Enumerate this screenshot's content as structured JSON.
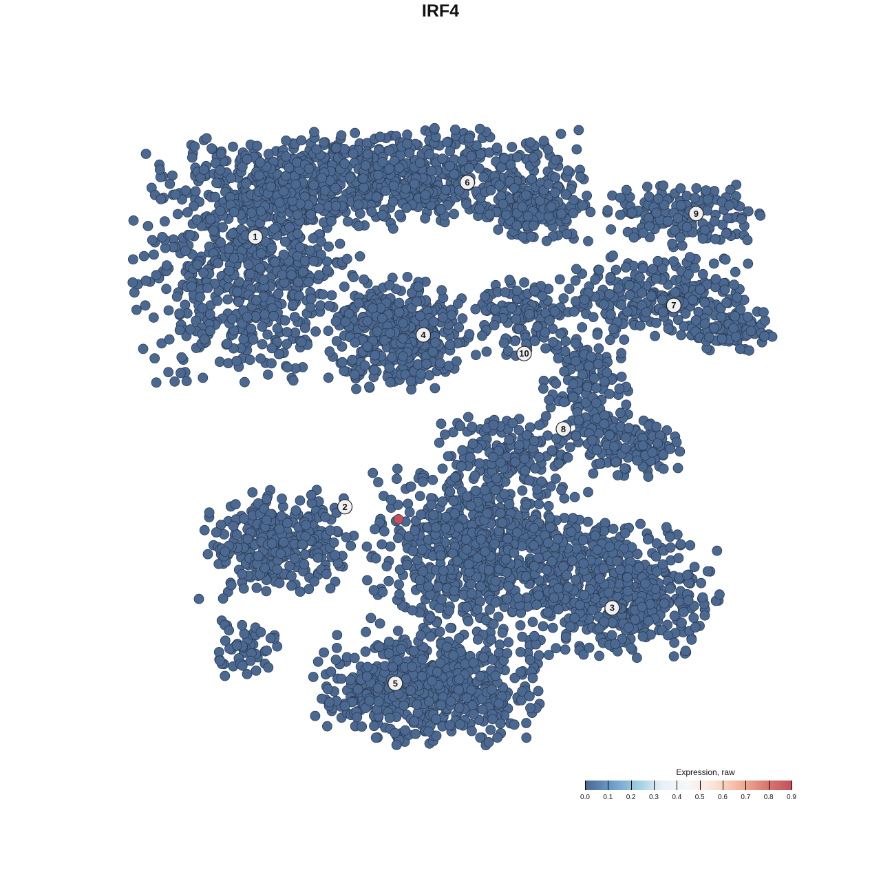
{
  "chart_data": {
    "type": "scatter",
    "title": "IRF4",
    "xlabel": "",
    "ylabel": "",
    "axes_visible": false,
    "grid": false,
    "point_color_default": "#4a6890",
    "point_stroke": "#2b3a52",
    "clusters": [
      {
        "label": "1",
        "label_pos": [
          -25.3,
          26.0
        ],
        "components": [
          [
            -26.2,
            22.8,
            6.9,
            7.5,
            700
          ],
          [
            -18.5,
            33.5,
            7.7,
            2.7,
            300
          ]
        ]
      },
      {
        "label": "2",
        "label_pos": [
          -14.1,
          -8.7
        ],
        "components": [
          [
            -22.8,
            -13.5,
            4.7,
            3.5,
            300
          ],
          [
            -27.1,
            -26.7,
            2.2,
            1.8,
            50
          ]
        ]
      },
      {
        "label": "3",
        "label_pos": [
          19.3,
          -21.7
        ],
        "components": [
          [
            20.2,
            -19.6,
            6.0,
            4.4,
            500
          ],
          [
            3.0,
            -14.3,
            6.9,
            5.3,
            700
          ]
        ]
      },
      {
        "label": "4",
        "label_pos": [
          -4.3,
          13.4
        ],
        "components": [
          [
            -7.3,
            13.5,
            3.9,
            3.5,
            400
          ]
        ]
      },
      {
        "label": "5",
        "label_pos": [
          -7.8,
          -31.4
        ],
        "components": [
          [
            -3.9,
            -32.0,
            6.9,
            3.5,
            600
          ]
        ]
      },
      {
        "label": "6",
        "label_pos": [
          1.2,
          33.0
        ],
        "components": [
          [
            -3.9,
            33.5,
            9.5,
            3.1,
            500
          ],
          [
            9.9,
            29.9,
            3.4,
            2.2,
            150
          ]
        ]
      },
      {
        "label": "7",
        "label_pos": [
          27.0,
          17.2
        ],
        "components": [
          [
            25.4,
            18.4,
            6.0,
            2.7,
            250
          ],
          [
            34.0,
            14.0,
            2.6,
            1.3,
            80
          ]
        ]
      },
      {
        "label": "8",
        "label_pos": [
          13.2,
          1.3
        ],
        "components": [
          [
            15.9,
            6.0,
            2.6,
            4.4,
            150
          ],
          [
            21.9,
            -1.1,
            3.0,
            1.8,
            120
          ],
          [
            6.5,
            -1.1,
            4.3,
            2.2,
            150
          ]
        ]
      },
      {
        "label": "9",
        "label_pos": [
          29.8,
          29.0
        ],
        "components": [
          [
            28.0,
            29.0,
            4.7,
            2.2,
            150
          ]
        ]
      },
      {
        "label": "10",
        "label_pos": [
          8.3,
          11.0
        ],
        "components": [
          [
            8.2,
            15.8,
            3.4,
            2.7,
            120
          ]
        ]
      }
    ],
    "highlight_points": [
      {
        "x": -7.4,
        "y": -10.3,
        "value": 0.9,
        "color": "#c4505e"
      }
    ],
    "xlim": [
      -40,
      40
    ],
    "ylim": [
      -40,
      40
    ],
    "colorbar": {
      "title": "Expression, raw",
      "ticks": [
        "0.0",
        "0.1",
        "0.2",
        "0.3",
        "0.4",
        "0.5",
        "0.6",
        "0.7",
        "0.8",
        "0.9"
      ],
      "range": [
        0,
        0.9
      ],
      "colors": [
        "#4a6890",
        "#f7f7f7",
        "#c4505e"
      ],
      "position": "bottom-right"
    }
  }
}
